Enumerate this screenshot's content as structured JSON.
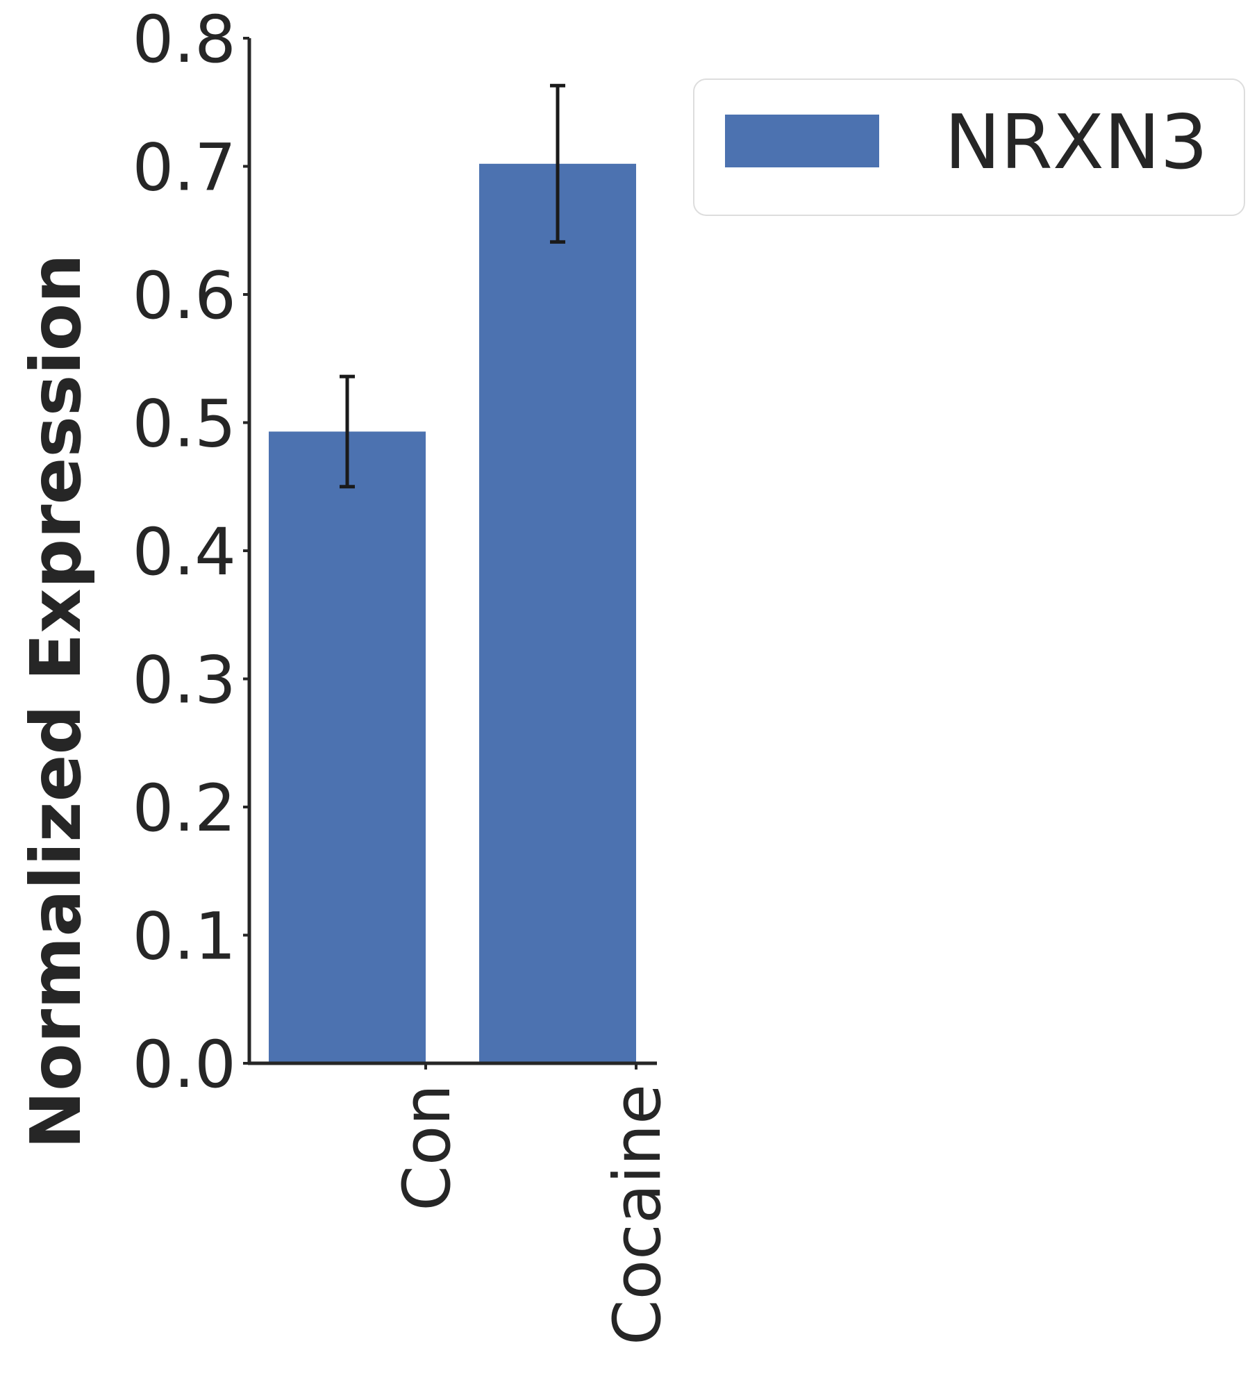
{
  "chart_data": {
    "type": "bar",
    "categories": [
      "Con",
      "Cocaine"
    ],
    "series": [
      {
        "name": "NRXN3",
        "values": [
          0.493,
          0.702
        ],
        "errors": [
          0.043,
          0.061
        ],
        "color": "#4c72b0"
      }
    ],
    "ylabel": "Normalized Expression",
    "ylim": [
      0,
      0.8
    ],
    "yticks": [
      "0.0",
      "0.1",
      "0.2",
      "0.3",
      "0.4",
      "0.5",
      "0.6",
      "0.7",
      "0.8"
    ],
    "legend_position": "top-right",
    "grid": false,
    "axis_color": "#262626",
    "error_color": "#1a1a1a"
  }
}
